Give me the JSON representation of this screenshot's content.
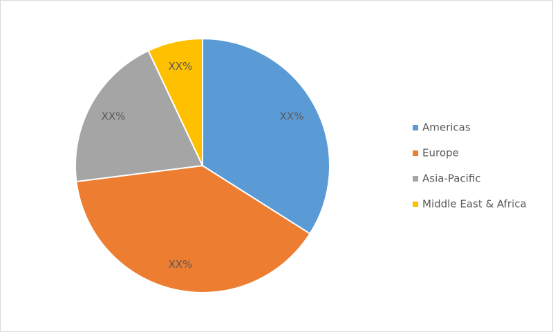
{
  "chart_data": {
    "type": "pie",
    "categories": [
      "Americas",
      "Europe",
      "Asia-Pacific",
      "Middle East & Africa"
    ],
    "values": [
      34,
      39,
      20,
      7
    ],
    "value_labels": [
      "XX%",
      "XX%",
      "XX%",
      "XX%"
    ],
    "colors": [
      "#5b9bd5",
      "#ed7d31",
      "#a5a5a5",
      "#ffc000"
    ],
    "legend": "right"
  }
}
